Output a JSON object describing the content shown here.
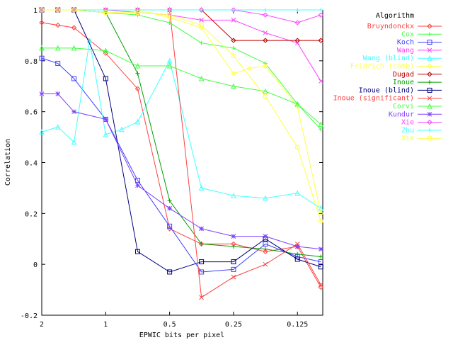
{
  "chart_data": {
    "type": "line",
    "xlabel": "EPWIC bits per pixel",
    "ylabel": "Correlation",
    "xscale": "log2",
    "xlim": [
      2,
      0.095
    ],
    "ylim": [
      -0.2,
      1.0
    ],
    "xticks": [
      2,
      1,
      0.5,
      0.25,
      0.125
    ],
    "xticklabels": [
      "2",
      "1",
      "0.5",
      "0.25",
      "0.125"
    ],
    "yticks": [
      -0.2,
      0,
      0.2,
      0.4,
      0.6,
      0.8,
      1
    ],
    "yticklabels": [
      "-0.2",
      "0",
      "0.2",
      "0.4",
      "0.6",
      "0.8",
      "1"
    ],
    "grid": false,
    "legend_position": "right",
    "legend_title": "Algorithm",
    "series": [
      {
        "name": "Bruyndonckx",
        "color": "#ff4040",
        "marker": "diamond",
        "x": [
          2,
          1.68,
          1.41,
          1,
          0.707,
          0.5,
          0.354,
          0.25,
          0.177,
          0.125,
          0.097
        ],
        "y": [
          0.95,
          0.94,
          0.93,
          0.83,
          0.69,
          0.14,
          0.08,
          0.08,
          0.05,
          0.07,
          -0.09
        ]
      },
      {
        "name": "Cox",
        "color": "#40ff40",
        "marker": "plus",
        "x": [
          2,
          1.68,
          1.41,
          1,
          0.707,
          0.5,
          0.354,
          0.25,
          0.177,
          0.125,
          0.097
        ],
        "y": [
          1.0,
          1.0,
          1.0,
          0.99,
          0.98,
          0.95,
          0.87,
          0.85,
          0.79,
          0.63,
          0.53
        ]
      },
      {
        "name": "Koch",
        "color": "#4040ff",
        "marker": "square",
        "x": [
          2,
          1.68,
          1.41,
          1,
          0.707,
          0.5,
          0.354,
          0.25,
          0.177,
          0.125,
          0.097
        ],
        "y": [
          0.81,
          0.79,
          0.73,
          0.57,
          0.33,
          0.15,
          -0.03,
          -0.02,
          0.08,
          0.03,
          0.01
        ]
      },
      {
        "name": "Wang",
        "color": "#ff40ff",
        "marker": "cross",
        "x": [
          2,
          1.68,
          1.41,
          1,
          0.707,
          0.5,
          0.354,
          0.25,
          0.177,
          0.125,
          0.097
        ],
        "y": [
          1.0,
          1.0,
          1.0,
          1.0,
          0.99,
          0.98,
          0.96,
          0.96,
          0.91,
          0.87,
          0.72
        ]
      },
      {
        "name": "Wang (blind)",
        "color": "#40ffff",
        "marker": "triangle",
        "x": [
          2,
          1.68,
          1.41,
          1.19,
          1,
          0.841,
          0.707,
          0.5,
          0.354,
          0.25,
          0.177,
          0.125,
          0.097
        ],
        "y": [
          0.52,
          0.54,
          0.48,
          0.88,
          0.51,
          0.53,
          0.56,
          0.8,
          0.3,
          0.27,
          0.26,
          0.28,
          0.22
        ]
      },
      {
        "name": "Fridrich (comb)",
        "color": "#ffff40",
        "marker": "diamond",
        "x": [
          2,
          1.68,
          1.41,
          1,
          0.707,
          0.5,
          0.354,
          0.25,
          0.21,
          0.177,
          0.125,
          0.097
        ],
        "y": [
          1.0,
          1.0,
          1.0,
          1.0,
          1.0,
          0.97,
          0.93,
          0.75,
          0.77,
          0.78,
          0.62,
          0.2
        ]
      },
      {
        "name": "Dugad",
        "color": "#c00000",
        "marker": "diamond",
        "x": [
          2,
          1.68,
          1.41,
          1,
          0.707,
          0.5,
          0.354,
          0.25,
          0.177,
          0.125,
          0.097
        ],
        "y": [
          1.0,
          1.0,
          1.0,
          1.0,
          1.0,
          1.0,
          1.0,
          0.88,
          0.88,
          0.88,
          0.88
        ]
      },
      {
        "name": "Inoue",
        "color": "#00a000",
        "marker": "plus",
        "x": [
          2,
          1.68,
          1.41,
          1,
          0.707,
          0.5,
          0.354,
          0.25,
          0.177,
          0.125,
          0.097
        ],
        "y": [
          1.0,
          1.0,
          1.0,
          0.99,
          0.75,
          0.25,
          0.08,
          0.07,
          0.06,
          0.04,
          0.03
        ]
      },
      {
        "name": "Inoue (blind)",
        "color": "#000080",
        "marker": "square",
        "x": [
          2,
          1.68,
          1.41,
          1,
          0.707,
          0.5,
          0.354,
          0.25,
          0.177,
          0.125,
          0.097
        ],
        "y": [
          1.0,
          1.0,
          1.0,
          0.73,
          0.05,
          -0.03,
          0.01,
          0.01,
          0.1,
          0.02,
          -0.01
        ]
      },
      {
        "name": "Inoue (significant)",
        "color": "#ff4040",
        "marker": "cross",
        "x": [
          2,
          1.68,
          1.41,
          1,
          0.707,
          0.5,
          0.354,
          0.25,
          0.177,
          0.125,
          0.097
        ],
        "y": [
          1.0,
          1.0,
          1.0,
          1.0,
          1.0,
          1.0,
          -0.13,
          -0.05,
          0.0,
          0.08,
          -0.08
        ]
      },
      {
        "name": "Corvi",
        "color": "#40ff40",
        "marker": "triangle",
        "x": [
          2,
          1.68,
          1.41,
          1,
          0.707,
          0.5,
          0.354,
          0.25,
          0.177,
          0.125,
          0.097
        ],
        "y": [
          0.85,
          0.85,
          0.85,
          0.84,
          0.78,
          0.78,
          0.73,
          0.7,
          0.68,
          0.63,
          0.55
        ]
      },
      {
        "name": "Kundur",
        "color": "#8040ff",
        "marker": "star",
        "x": [
          2,
          1.68,
          1.41,
          1,
          0.707,
          0.5,
          0.354,
          0.25,
          0.177,
          0.125,
          0.097
        ],
        "y": [
          0.67,
          0.67,
          0.6,
          0.57,
          0.31,
          0.22,
          0.14,
          0.11,
          0.11,
          0.07,
          0.06
        ]
      },
      {
        "name": "Xie",
        "color": "#ff40ff",
        "marker": "diamond",
        "x": [
          2,
          1.68,
          1.41,
          1,
          0.707,
          0.5,
          0.354,
          0.25,
          0.177,
          0.125,
          0.097
        ],
        "y": [
          1.0,
          1.0,
          1.0,
          1.0,
          1.0,
          1.0,
          1.0,
          1.0,
          0.98,
          0.95,
          0.98
        ]
      },
      {
        "name": "Zhu",
        "color": "#40ffff",
        "marker": "plus",
        "x": [
          2,
          1.68,
          1.41,
          1,
          0.707,
          0.5,
          0.354,
          0.25,
          0.177,
          0.125,
          0.097
        ],
        "y": [
          1.0,
          1.0,
          1.0,
          1.0,
          1.0,
          1.0,
          1.0,
          1.0,
          1.0,
          1.0,
          1.0
        ]
      },
      {
        "name": "Xia",
        "color": "#ffff40",
        "marker": "circle",
        "x": [
          2,
          1.68,
          1.41,
          1,
          0.707,
          0.5,
          0.354,
          0.25,
          0.177,
          0.125,
          0.097
        ],
        "y": [
          1.0,
          1.0,
          1.0,
          0.99,
          0.99,
          0.98,
          0.94,
          0.82,
          0.66,
          0.46,
          0.17
        ]
      }
    ]
  }
}
